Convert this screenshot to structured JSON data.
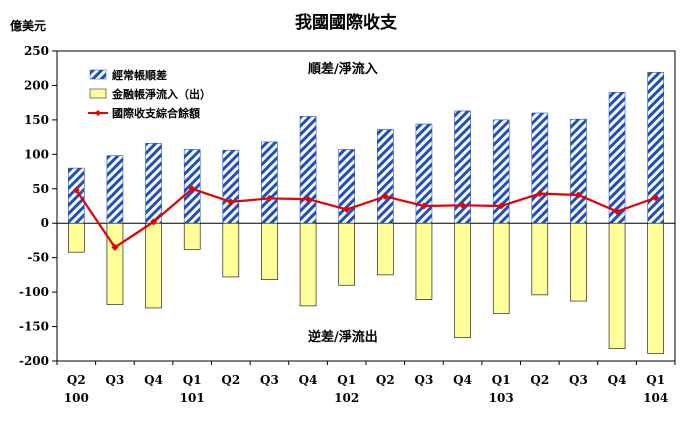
{
  "chart_data": {
    "type": "bar",
    "title": "我國國際收支",
    "unit_label": "億美元",
    "categories": [
      "Q2",
      "Q3",
      "Q4",
      "Q1",
      "Q2",
      "Q3",
      "Q4",
      "Q1",
      "Q2",
      "Q3",
      "Q4",
      "Q1",
      "Q2",
      "Q3",
      "Q4",
      "Q1"
    ],
    "year_labels": [
      "100",
      "",
      "",
      "101",
      "",
      "",
      "",
      "102",
      "",
      "",
      "",
      "103",
      "",
      "",
      "",
      "104"
    ],
    "series": [
      {
        "name": "經常帳順差",
        "kind": "bar",
        "pattern": "diagonal-stripe",
        "color": "#1f4fbf",
        "values": [
          80,
          98,
          116,
          107,
          106,
          118,
          155,
          107,
          136,
          144,
          163,
          150,
          160,
          151,
          190,
          219
        ]
      },
      {
        "name": "金融帳淨流入（出）",
        "kind": "bar",
        "color": "#ffff99",
        "values": [
          -42,
          -118,
          -123,
          -38,
          -78,
          -82,
          -120,
          -90,
          -75,
          -111,
          -166,
          -131,
          -104,
          -113,
          -182,
          -189
        ]
      },
      {
        "name": "國際收支綜合餘額",
        "kind": "line",
        "color": "#e60000",
        "values": [
          48,
          -35,
          2,
          50,
          31,
          36,
          35,
          20,
          39,
          25,
          26,
          25,
          43,
          41,
          17,
          37
        ]
      }
    ],
    "ylim": [
      -200,
      250
    ],
    "yticks": [
      250,
      200,
      150,
      100,
      50,
      0,
      -50,
      -100,
      -150,
      -200
    ],
    "annotations": [
      "順差/淨流入",
      "逆差/淨流出"
    ],
    "legend_position": "top-left",
    "grid": false
  }
}
